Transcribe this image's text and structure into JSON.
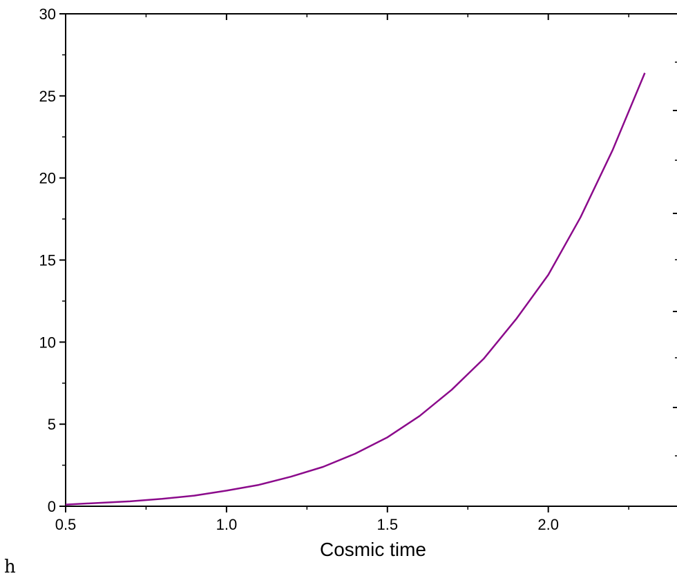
{
  "chart_data": {
    "type": "line",
    "title": "",
    "xlabel": "Cosmic time",
    "ylabel": "",
    "xlim": [
      0.5,
      2.4
    ],
    "ylim": [
      0,
      30
    ],
    "x_ticks": [
      0.5,
      1.0,
      1.5,
      2.0
    ],
    "x_tick_labels": [
      "0.5",
      "1.0",
      "1.5",
      "2.0"
    ],
    "y_ticks": [
      0,
      5,
      10,
      15,
      20,
      25,
      30
    ],
    "y_tick_labels": [
      "0",
      "5",
      "10",
      "15",
      "20",
      "25",
      "30"
    ],
    "grid": false,
    "series": [
      {
        "color": "#8b0a8b",
        "x": [
          0.5,
          0.6,
          0.7,
          0.8,
          0.9,
          1.0,
          1.1,
          1.2,
          1.3,
          1.4,
          1.5,
          1.6,
          1.7,
          1.8,
          1.9,
          2.0,
          2.1,
          2.2,
          2.3
        ],
        "y": [
          0.1,
          0.2,
          0.3,
          0.45,
          0.65,
          0.95,
          1.3,
          1.8,
          2.4,
          3.2,
          4.2,
          5.5,
          7.1,
          9.0,
          11.4,
          14.1,
          17.6,
          21.7,
          26.4
        ]
      }
    ]
  },
  "panel_label": "h"
}
